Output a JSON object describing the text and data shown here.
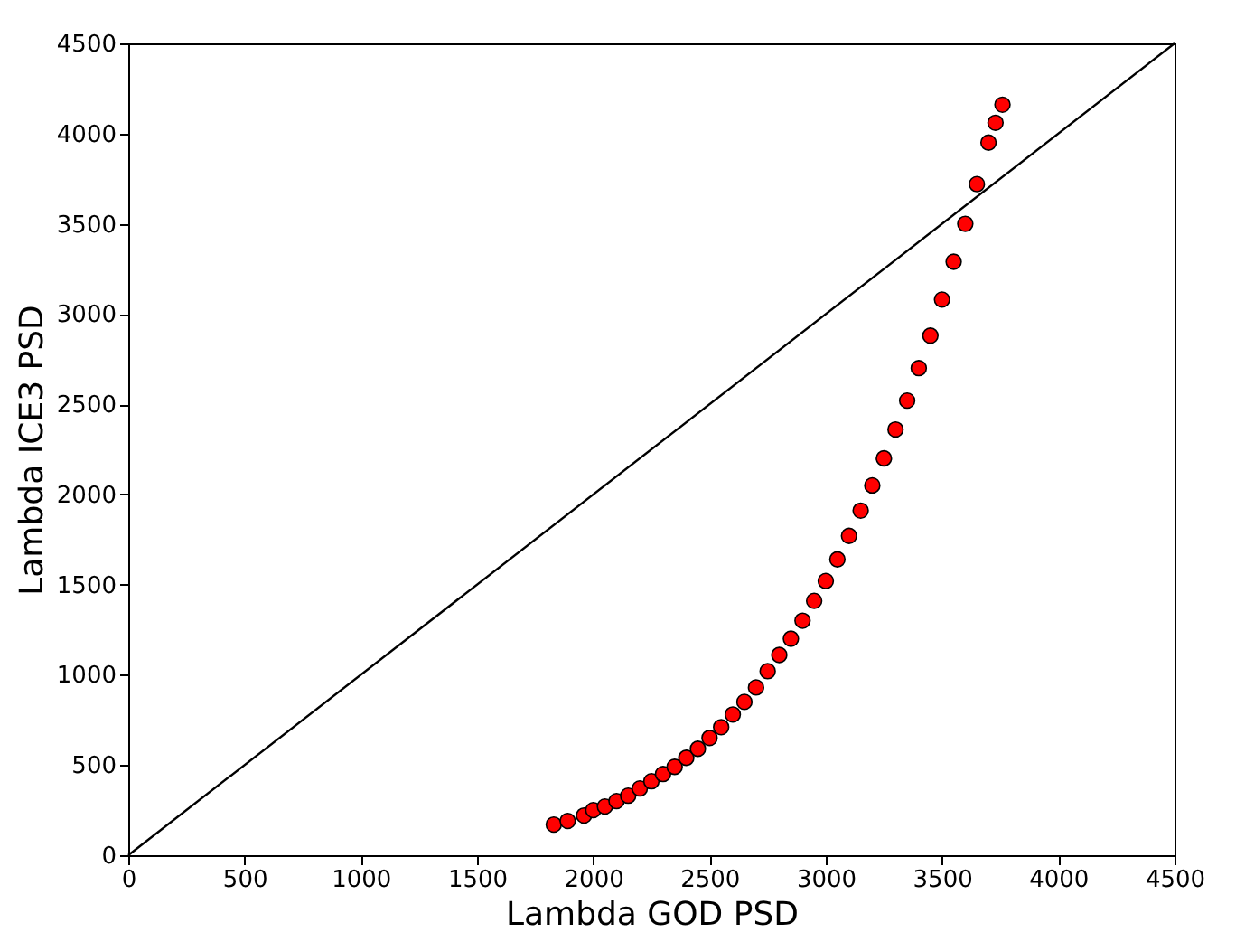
{
  "chart_data": {
    "type": "scatter",
    "xlabel": "Lambda GOD PSD",
    "ylabel": "Lambda ICE3 PSD",
    "xlim": [
      0,
      4500
    ],
    "ylim": [
      0,
      4500
    ],
    "xticks": [
      0,
      500,
      1000,
      1500,
      2000,
      2500,
      3000,
      3500,
      4000,
      4500
    ],
    "yticks": [
      0,
      500,
      1000,
      1500,
      2000,
      2500,
      3000,
      3500,
      4000,
      4500
    ],
    "grid": false,
    "series": [
      {
        "type": "line",
        "color": "#000000",
        "line_style": "solid",
        "marker": "none",
        "x": [
          0,
          4500
        ],
        "values": [
          0,
          4500
        ]
      },
      {
        "color": "#ff0000",
        "marker": "circle",
        "x": [
          1830,
          1890,
          1960,
          2000,
          2050,
          2100,
          2150,
          2200,
          2250,
          2300,
          2350,
          2400,
          2450,
          2500,
          2550,
          2600,
          2650,
          2700,
          2750,
          2800,
          2850,
          2900,
          2950,
          3000,
          3050,
          3100,
          3150,
          3200,
          3250,
          3300,
          3350,
          3400,
          3450,
          3500,
          3550,
          3600,
          3650,
          3700,
          3730,
          3760
        ],
        "values": [
          170,
          190,
          220,
          250,
          270,
          300,
          330,
          370,
          410,
          450,
          490,
          540,
          590,
          650,
          710,
          780,
          850,
          930,
          1020,
          1110,
          1200,
          1300,
          1410,
          1520,
          1640,
          1770,
          1910,
          2050,
          2200,
          2360,
          2520,
          2700,
          2880,
          3080,
          3290,
          3500,
          3720,
          3950,
          4060,
          4160
        ]
      }
    ]
  }
}
